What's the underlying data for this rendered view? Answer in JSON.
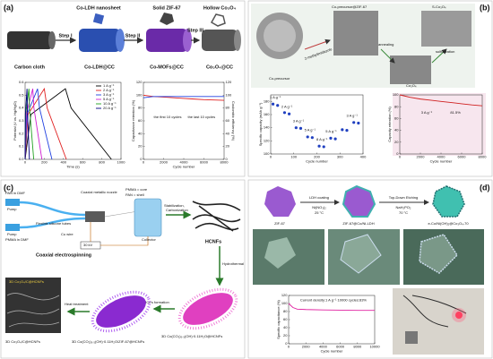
{
  "figure": {
    "a": {
      "label": "(a)",
      "carbon_cloth": "Carbon cloth",
      "step1": "Step I",
      "ldh_top": "Co-LDH nanosheet",
      "ldh": "Co-LDH@CC",
      "step2": "Step II",
      "zif_top": "Solid ZIF-67",
      "mof": "Co-MOFs@CC",
      "step3": "Step III",
      "hollow_top": "Hollow Co₃O₄",
      "final": "Co₃O₄@CC"
    },
    "b": {
      "label": "(b)",
      "precursor": "Co-precursor",
      "precursor_zif": "Co-precursor@ZIF-67",
      "sco": "S-Co₃O₄",
      "co": "Co₃O₄",
      "arrow1": "2-methylimidazole",
      "arrow2": "annealing",
      "arrow3": "sulfurization"
    },
    "c": {
      "label": "(c)",
      "pan": "PAN in DMF",
      "pump1": "Pump",
      "pump2": "Pump",
      "tubes": "Flexible silicone tubes",
      "pmma": "PMMA in DMF",
      "nozzle": "Coaxial metallic nozzle",
      "core": "PMMA = core",
      "shell": "PAN = shell",
      "cu": "Cu wire",
      "collector": "Collector",
      "kv": "30 kV",
      "title": "Coaxial electrospinning",
      "stab": "Stabilization,",
      "carb": "Carbonization",
      "hcnf": "HCNFs",
      "hydro": "Hydrothermal",
      "mofs": "MOFs formation",
      "heat": "Heat treatment",
      "inset": "3D Co₃O₄/C@HCNFs",
      "p1": "3D Co₃O₄/C@HCNFs",
      "p2": "3D Co(CO₃)₀.₅(OH)·0.11H₂O/ZIF-67@HCNFs",
      "p3": "3D Co(CO₃)₀.₅(OH)·0.11H₂O@HCNFs"
    },
    "d": {
      "label": "(d)",
      "zif": "ZIF-67",
      "coating": "LDH coating",
      "ni": "Ni(NO₃)₂",
      "t1": "25 °C",
      "ldh": "ZIF-67@Co/Ni-LDH",
      "etch": "Top-Down Etching",
      "nah": "NaH₂PO₂",
      "t2": "70 °C",
      "final": "e-Co/Ni(OH)₂@Co₃O₄-70"
    }
  },
  "chart_data": [
    {
      "type": "line",
      "x_label": "Time (s)",
      "y_label": "Potential (V vs. Hg/HgO)",
      "xlim": [
        0,
        1000
      ],
      "xticks": [
        0,
        200,
        400,
        600,
        800,
        1000
      ],
      "ylim": [
        0,
        0.6
      ],
      "yticks": [
        {
          "value": 0,
          "label": "0.0"
        },
        0.1,
        0.2,
        0.3,
        0.4,
        0.5,
        0.6
      ],
      "legend": "upper right",
      "series": [
        {
          "name": "1 A g⁻¹",
          "color": "#000000",
          "x": [
            0,
            60,
            420,
            480,
            900
          ],
          "values": [
            0,
            0.35,
            0.55,
            0.4,
            0
          ]
        },
        {
          "name": "2 A g⁻¹",
          "color": "#e02020",
          "x": [
            0,
            30,
            200,
            230,
            430
          ],
          "values": [
            0,
            0.35,
            0.55,
            0.4,
            0
          ]
        },
        {
          "name": "3 A g⁻¹",
          "color": "#2040e0",
          "x": [
            0,
            20,
            130,
            150,
            280
          ],
          "values": [
            0,
            0.35,
            0.55,
            0.4,
            0
          ]
        },
        {
          "name": "5 A g⁻¹",
          "color": "#d020d0",
          "x": [
            0,
            12,
            80,
            92,
            175
          ],
          "values": [
            0,
            0.35,
            0.55,
            0.4,
            0
          ]
        },
        {
          "name": "10 A g⁻¹",
          "color": "#20a020",
          "x": [
            0,
            6,
            40,
            46,
            90
          ],
          "values": [
            0,
            0.35,
            0.55,
            0.4,
            0
          ]
        },
        {
          "name": "20 A g⁻¹",
          "color": "#000080",
          "x": [
            0,
            3,
            20,
            23,
            45
          ],
          "values": [
            0,
            0.35,
            0.55,
            0.4,
            0
          ]
        }
      ]
    },
    {
      "type": "line",
      "x_label": "Cycle number",
      "y_label": "Capacitance retention (%)",
      "y2_label": "Coulombic efficiency (%)",
      "xlim": [
        0,
        8000
      ],
      "xticks": [
        0,
        2000,
        4000,
        6000,
        8000
      ],
      "ylim": [
        0,
        120
      ],
      "yticks": [
        0,
        20,
        40,
        60,
        80,
        100,
        120
      ],
      "y2lim": [
        0,
        120
      ],
      "y2ticks": [
        0,
        20,
        40,
        60,
        80,
        100,
        120
      ],
      "annotations": [
        "the first 10 cycles",
        "the last 10 cycles"
      ],
      "series": [
        {
          "color": "#e02020",
          "x": [
            0,
            1000,
            2000,
            3000,
            4000,
            5000,
            6000,
            7000,
            8000
          ],
          "values": [
            100,
            98,
            97,
            96,
            95,
            94,
            93,
            92.5,
            92
          ]
        },
        {
          "color": "#2040e0",
          "axis": "y2",
          "x": [
            0,
            1000,
            2000,
            3000,
            4000,
            5000,
            6000,
            7000,
            8000
          ],
          "values": [
            96,
            98,
            98,
            98,
            98,
            98,
            98,
            98,
            98
          ]
        }
      ]
    },
    {
      "type": "scatter",
      "x_label": "Cycle number",
      "y_label": "Specific capacity (mAh g⁻¹)",
      "xlim": [
        0,
        400
      ],
      "xticks": [
        0,
        100,
        200,
        300,
        400
      ],
      "ylim": [
        100,
        190
      ],
      "yticks": [
        100,
        120,
        140,
        160,
        180
      ],
      "annotations": [
        "1 A g⁻¹",
        "2 A g⁻¹",
        "3 A g⁻¹",
        "5 A g⁻¹",
        "8 A g⁻¹",
        "5 A g⁻¹",
        "3 A g⁻¹"
      ],
      "series": [
        {
          "color": "#2040c0",
          "x": [
            10,
            30,
            60,
            80,
            110,
            130,
            160,
            180,
            210,
            230,
            260,
            280,
            310,
            330,
            360,
            380
          ],
          "values": [
            176,
            174,
            163,
            161,
            140,
            139,
            126,
            125,
            112,
            111,
            124,
            123,
            137,
            136,
            148,
            147
          ]
        }
      ]
    },
    {
      "type": "line",
      "x_label": "Cycle number",
      "y_label": "Capacity retention (%)",
      "xlim": [
        0,
        8000
      ],
      "xticks": [
        0,
        2000,
        4000,
        6000,
        8000
      ],
      "ylim": [
        0,
        100
      ],
      "yticks": [
        0,
        20,
        40,
        60,
        80,
        100
      ],
      "annotations": [
        "3 A g⁻¹",
        "81.5%"
      ],
      "series": [
        {
          "color": "#d02020",
          "x": [
            0,
            1000,
            2000,
            3000,
            4000,
            5000,
            6000,
            7000,
            8000
          ],
          "values": [
            100,
            96,
            93,
            91,
            89,
            87,
            85,
            83,
            81.5
          ]
        }
      ]
    },
    {
      "type": "line",
      "x_label": "Cycle number",
      "y_label": "Specific capacitance (%)",
      "xlim": [
        0,
        10000
      ],
      "xticks": [
        0,
        2000,
        4000,
        6000,
        8000,
        10000
      ],
      "ylim": [
        0,
        120
      ],
      "yticks": [
        0,
        20,
        40,
        60,
        80,
        100,
        120
      ],
      "annotations": [
        "Current density:1 A g⁻¹ 10000 cycles:83%"
      ],
      "series": [
        {
          "color": "#e020a0",
          "x": [
            0,
            500,
            1000,
            2000,
            4000,
            6000,
            8000,
            10000
          ],
          "values": [
            100,
            90,
            86,
            85,
            84,
            83.5,
            83,
            83
          ]
        }
      ]
    }
  ]
}
